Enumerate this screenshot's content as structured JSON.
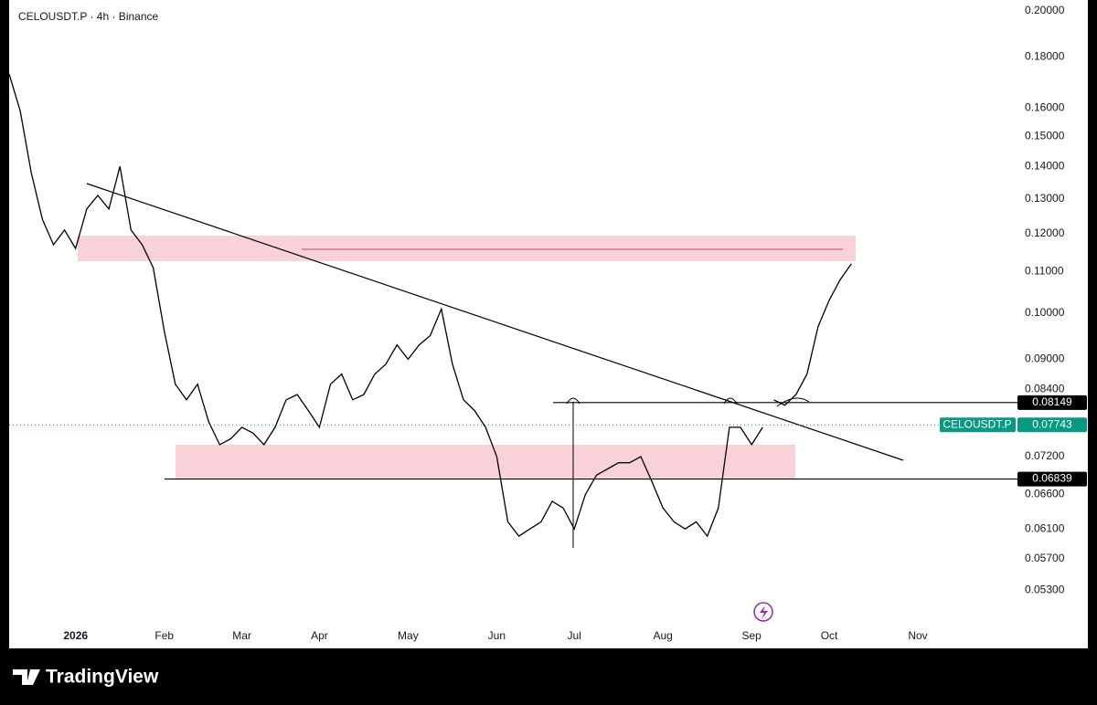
{
  "chart_data": {
    "type": "line",
    "title": "CELOUSDT.P · 4h · Binance",
    "log_scale": true,
    "categories": [
      null,
      null,
      null,
      null,
      null,
      null,
      "2026",
      null,
      null,
      null,
      null,
      null,
      null,
      null,
      "Feb",
      null,
      null,
      null,
      null,
      null,
      null,
      "Mar",
      null,
      null,
      null,
      null,
      null,
      null,
      "Apr",
      null,
      null,
      null,
      null,
      null,
      null,
      null,
      "May",
      null,
      null,
      null,
      null,
      null,
      null,
      null,
      "Jun",
      null,
      null,
      null,
      null,
      null,
      null,
      "Jul",
      null,
      null,
      null,
      null,
      null,
      null,
      null,
      "Aug",
      null,
      null,
      null,
      null,
      null,
      null,
      null,
      "Sep",
      null,
      null,
      null,
      null,
      null,
      null,
      "Oct",
      null,
      null,
      null,
      null,
      null,
      null,
      null,
      "Nov"
    ],
    "series": [
      {
        "name": "CELOUSDT.P",
        "color": "#000000",
        "values": [
          0.173,
          0.159,
          0.138,
          0.124,
          0.117,
          0.121,
          0.116,
          0.127,
          0.131,
          0.127,
          0.14,
          0.121,
          0.117,
          0.111,
          0.096,
          0.085,
          0.082,
          0.085,
          0.078,
          0.074,
          0.075,
          0.077,
          0.076,
          0.074,
          0.077,
          0.082,
          0.083,
          0.08,
          0.077,
          0.085,
          0.087,
          0.082,
          0.083,
          0.087,
          0.089,
          0.093,
          0.09,
          0.093,
          0.095,
          0.101,
          0.089,
          0.082,
          0.08,
          0.077,
          0.072,
          0.062,
          0.06,
          0.061,
          0.062,
          0.065,
          0.064,
          0.061,
          0.066,
          0.069,
          0.07,
          0.071,
          0.071,
          0.072,
          0.068,
          0.064,
          0.062,
          0.061,
          0.062,
          0.06,
          0.064,
          0.077,
          0.077,
          0.074,
          0.077,
          null,
          null,
          null,
          null,
          null,
          null,
          null,
          null,
          null,
          null,
          null,
          null,
          null,
          null
        ]
      },
      {
        "color": "#000000",
        "values": [
          null,
          null,
          null,
          null,
          null,
          null,
          null,
          null,
          null,
          null,
          null,
          null,
          null,
          null,
          null,
          null,
          null,
          null,
          null,
          null,
          null,
          null,
          null,
          null,
          null,
          null,
          null,
          null,
          null,
          null,
          null,
          null,
          null,
          null,
          null,
          null,
          null,
          null,
          null,
          null,
          null,
          null,
          null,
          null,
          null,
          null,
          null,
          null,
          null,
          null,
          null,
          null,
          null,
          null,
          null,
          null,
          null,
          null,
          null,
          null,
          null,
          null,
          null,
          null,
          null,
          null,
          null,
          null,
          null,
          0.082,
          0.081,
          0.083,
          0.087,
          0.097,
          0.103,
          0.108,
          0.112,
          null,
          null,
          null,
          null,
          null,
          null
        ]
      }
    ],
    "ylim": [
      0.0494,
      0.205
    ],
    "yticks": [
      {
        "value": 0.2,
        "label": "0.20000"
      },
      {
        "value": 0.18,
        "label": "0.18000"
      },
      {
        "value": 0.16,
        "label": "0.16000"
      },
      {
        "value": 0.15,
        "label": "0.15000"
      },
      {
        "value": 0.14,
        "label": "0.14000"
      },
      {
        "value": 0.13,
        "label": "0.13000"
      },
      {
        "value": 0.12,
        "label": "0.12000"
      },
      {
        "value": 0.11,
        "label": "0.11000"
      },
      {
        "value": 0.1,
        "label": "0.10000"
      },
      {
        "value": 0.09,
        "label": "0.09000"
      },
      {
        "value": 0.084,
        "label": "0.08400"
      },
      {
        "value": 0.072,
        "label": "0.07200"
      },
      {
        "value": 0.066,
        "label": "0.06600"
      },
      {
        "value": 0.061,
        "label": "0.06100"
      },
      {
        "value": 0.057,
        "label": "0.05700"
      },
      {
        "value": 0.053,
        "label": "0.05300"
      }
    ],
    "levels": [
      0.08149,
      0.06839
    ],
    "current_price": 0.07743,
    "current_color": "#089981",
    "brand": "TradingView"
  }
}
